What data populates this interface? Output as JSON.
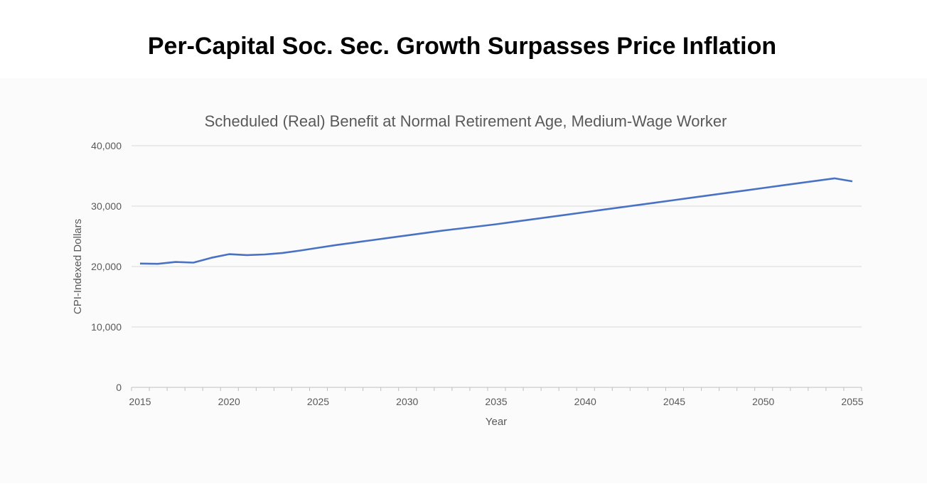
{
  "slide_title": "Per-Capital Soc. Sec. Growth Surpasses Price Inflation",
  "chart_data": {
    "type": "line",
    "title": "Scheduled (Real) Benefit at Normal Retirement Age, Medium-Wage Worker",
    "xlabel": "Year",
    "ylabel": "CPI-Indexed Dollars",
    "xlim": [
      2015,
      2055
    ],
    "ylim": [
      0,
      40000
    ],
    "x_ticks": [
      "2015",
      "2020",
      "2025",
      "2030",
      "2035",
      "2040",
      "2045",
      "2050",
      "2055"
    ],
    "y_ticks": [
      "0",
      "10,000",
      "20,000",
      "30,000",
      "40,000"
    ],
    "grid": true,
    "line_color": "#4a72c4",
    "series": [
      {
        "x": [
          2015,
          2016,
          2017,
          2018,
          2019,
          2020,
          2021,
          2022,
          2023,
          2024,
          2025,
          2026,
          2027,
          2028,
          2029,
          2030,
          2031,
          2032,
          2033,
          2034,
          2035,
          2036,
          2037,
          2038,
          2039,
          2040,
          2041,
          2042,
          2043,
          2044,
          2045,
          2046,
          2047,
          2048,
          2049,
          2050,
          2051,
          2052,
          2053,
          2054,
          2055
        ],
        "values": [
          20500,
          20450,
          20750,
          20650,
          21450,
          22050,
          21900,
          22000,
          22250,
          22650,
          23100,
          23550,
          23950,
          24350,
          24750,
          25150,
          25550,
          25950,
          26300,
          26650,
          27000,
          27400,
          27800,
          28200,
          28600,
          29000,
          29400,
          29800,
          30200,
          30600,
          31000,
          31400,
          31800,
          32200,
          32600,
          33000,
          33400,
          33800,
          34200,
          34600,
          34100
        ]
      }
    ]
  }
}
